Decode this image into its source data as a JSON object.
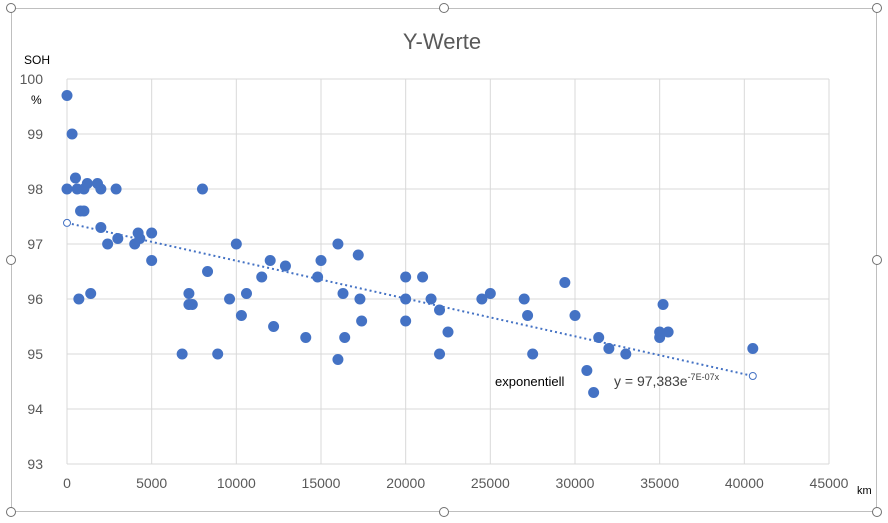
{
  "chart_data": {
    "type": "scatter",
    "title": "Y-Werte",
    "ylabel": "SOH",
    "yunit": "%",
    "xunit": "km",
    "xlim": [
      0,
      45000
    ],
    "ylim": [
      93,
      100
    ],
    "xticks": [
      0,
      5000,
      10000,
      15000,
      20000,
      25000,
      30000,
      35000,
      40000,
      45000
    ],
    "yticks": [
      93,
      94,
      95,
      96,
      97,
      98,
      99,
      100
    ],
    "grid": true,
    "marker_color": "#4472c4",
    "points": [
      [
        0,
        99.7
      ],
      [
        0,
        98.0
      ],
      [
        300,
        99.0
      ],
      [
        500,
        98.2
      ],
      [
        600,
        98.0
      ],
      [
        700,
        96.0
      ],
      [
        800,
        97.6
      ],
      [
        1000,
        97.6
      ],
      [
        1000,
        98.0
      ],
      [
        1200,
        98.1
      ],
      [
        1400,
        96.1
      ],
      [
        1800,
        98.1
      ],
      [
        2000,
        98.0
      ],
      [
        2000,
        97.3
      ],
      [
        2400,
        97.0
      ],
      [
        2900,
        98.0
      ],
      [
        3000,
        97.1
      ],
      [
        4000,
        97.0
      ],
      [
        4200,
        97.2
      ],
      [
        4300,
        97.1
      ],
      [
        5000,
        97.2
      ],
      [
        5000,
        96.7
      ],
      [
        6800,
        95.0
      ],
      [
        7200,
        96.1
      ],
      [
        7200,
        95.9
      ],
      [
        7400,
        95.9
      ],
      [
        8000,
        98.0
      ],
      [
        8300,
        96.5
      ],
      [
        8900,
        95.0
      ],
      [
        9600,
        96.0
      ],
      [
        10000,
        97.0
      ],
      [
        10300,
        95.7
      ],
      [
        10600,
        96.1
      ],
      [
        11500,
        96.4
      ],
      [
        12000,
        96.7
      ],
      [
        12200,
        95.5
      ],
      [
        12900,
        96.6
      ],
      [
        14100,
        95.3
      ],
      [
        14800,
        96.4
      ],
      [
        15000,
        96.7
      ],
      [
        16000,
        97.0
      ],
      [
        16000,
        94.9
      ],
      [
        16300,
        96.1
      ],
      [
        16400,
        95.3
      ],
      [
        17200,
        96.8
      ],
      [
        17300,
        96.0
      ],
      [
        17400,
        95.6
      ],
      [
        20000,
        96.4
      ],
      [
        20000,
        96.0
      ],
      [
        20000,
        95.6
      ],
      [
        21000,
        96.4
      ],
      [
        21500,
        96.0
      ],
      [
        22000,
        95.8
      ],
      [
        22000,
        95.0
      ],
      [
        22500,
        95.4
      ],
      [
        24500,
        96.0
      ],
      [
        25000,
        96.1
      ],
      [
        27000,
        96.0
      ],
      [
        27200,
        95.7
      ],
      [
        27500,
        95.0
      ],
      [
        29400,
        96.3
      ],
      [
        30000,
        95.7
      ],
      [
        30700,
        94.7
      ],
      [
        31100,
        94.3
      ],
      [
        31400,
        95.3
      ],
      [
        32000,
        95.1
      ],
      [
        33000,
        95.0
      ],
      [
        35000,
        95.4
      ],
      [
        35000,
        95.3
      ],
      [
        35200,
        95.9
      ],
      [
        35500,
        95.4
      ],
      [
        40500,
        95.1
      ]
    ],
    "trendline": {
      "type": "exponential",
      "color": "#4472c4",
      "style": "dotted",
      "x_start": 0,
      "x_end": 40500,
      "y_start": 97.383,
      "y_end": 94.6
    },
    "annotations": {
      "series_label": "exponentiell",
      "equation_main": "y = 97,383e",
      "equation_sup": "-7E-07x"
    }
  }
}
